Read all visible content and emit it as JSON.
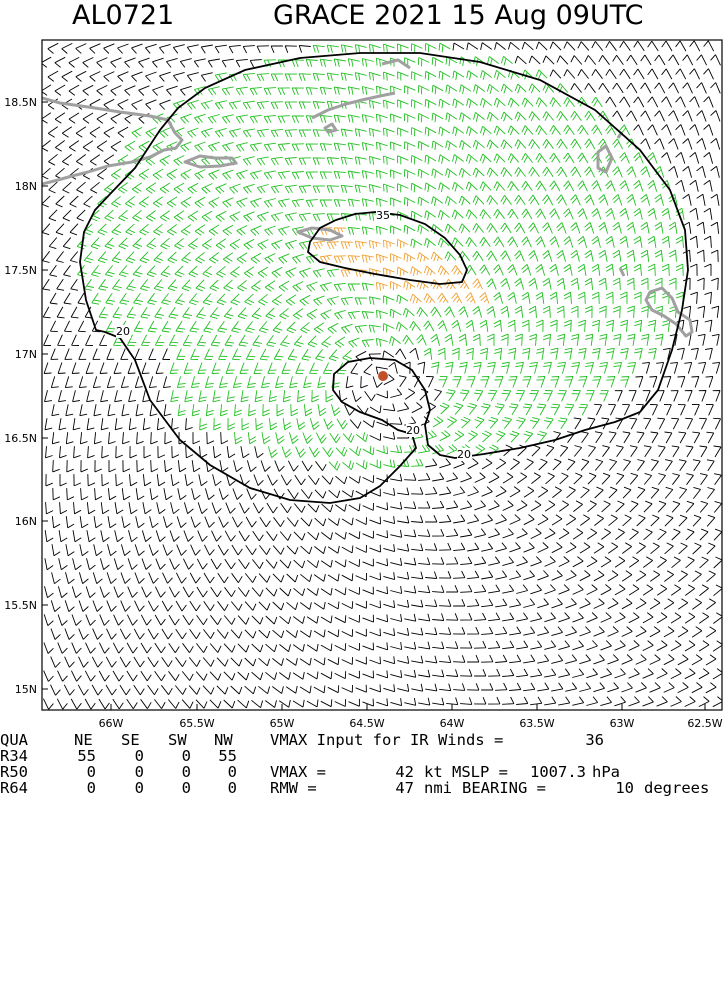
{
  "header": {
    "storm_id": "AL0721",
    "title": "GRACE 2021 15 Aug 09UTC"
  },
  "map": {
    "y_ticks": [
      "18.5N",
      "18N",
      "17.5N",
      "17N",
      "16.5N",
      "16N",
      "15.5N",
      "15N"
    ],
    "x_ticks": [
      "66W",
      "65.5W",
      "65W",
      "64.5W",
      "64W",
      "63.5W",
      "63W",
      "62.5W"
    ],
    "lon_range": [
      -66.5,
      -62.5
    ],
    "lat_range": [
      14.85,
      18.9
    ],
    "center": {
      "lon": -64.3,
      "lat": 16.85
    },
    "contour_labels": [
      "35",
      "20",
      "20",
      "20"
    ],
    "colors": {
      "low_wind_barbs": "#000000",
      "r34_barbs": "#22c022",
      "r50_barbs": "#f0a030",
      "coastline": "#a0a0a0",
      "contour": "#000000",
      "center_dot": "#c0502a"
    }
  },
  "stats": {
    "columns": {
      "qua": "QUA",
      "ne": "NE",
      "se": "SE",
      "sw": "SW",
      "nw": "NW"
    },
    "rows": [
      {
        "label": "R34",
        "ne": "55",
        "se": "0",
        "sw": "0",
        "nw": "55"
      },
      {
        "label": "R50",
        "ne": "0",
        "se": "0",
        "sw": "0",
        "nw": "0"
      },
      {
        "label": "R64",
        "ne": "0",
        "se": "0",
        "sw": "0",
        "nw": "0"
      }
    ],
    "vmax_input_label": "VMAX Input for IR Winds =",
    "vmax_input_value": "36",
    "vmax_label": "VMAX =",
    "vmax_value": "42",
    "vmax_unit": "kt",
    "mslp_label": "MSLP =",
    "mslp_value": "1007.3",
    "mslp_unit": "hPa",
    "rmw_label": "RMW =",
    "rmw_value": "47",
    "rmw_unit": "nmi",
    "bearing_label": "BEARING =",
    "bearing_value": "10",
    "bearing_unit": "degrees"
  }
}
